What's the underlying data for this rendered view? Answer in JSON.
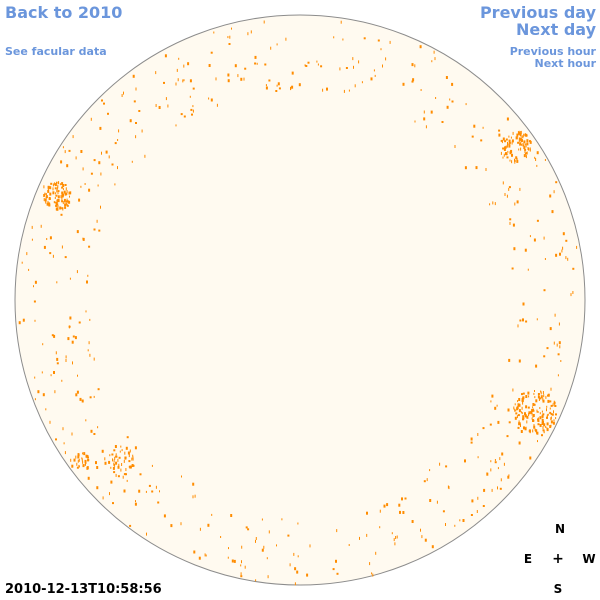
{
  "nav": {
    "back": "Back to 2010",
    "facular": "See facular data",
    "previous_day": "Previous day",
    "next_day": "Next day",
    "previous_hour": "Previous hour",
    "next_hour": "Next hour"
  },
  "timestamp": "2010-12-13T10:58:56",
  "compass": {
    "north": "N",
    "east": "E",
    "center": "+",
    "west": "W",
    "south": "S"
  },
  "colors": {
    "disk_fill": "#fffaf0",
    "disk_stroke": "#8c8c8c",
    "facula": "#ff8c00",
    "link": "#6b96dc"
  }
}
